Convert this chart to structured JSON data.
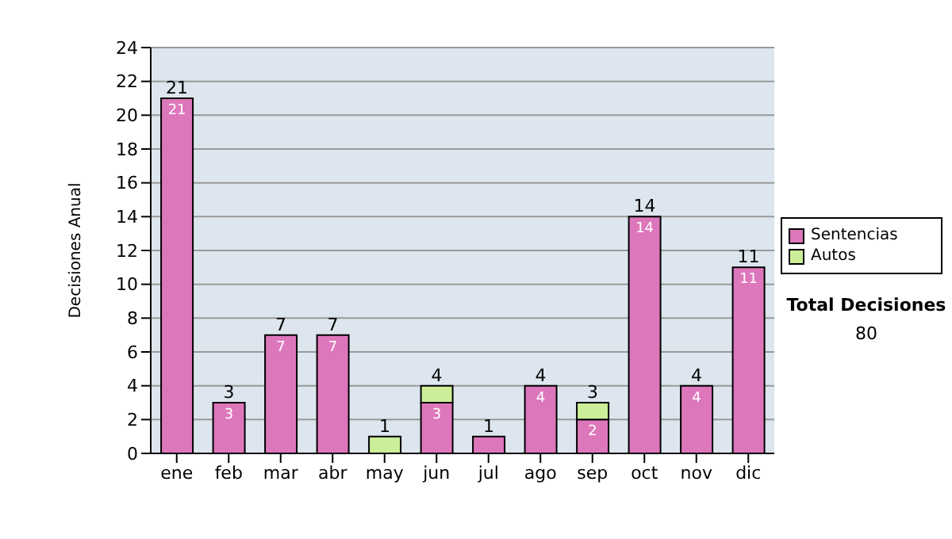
{
  "chart_data": {
    "type": "bar",
    "stacked": true,
    "ylabel": "Decisiones Anual",
    "categories": [
      "ene",
      "feb",
      "mar",
      "abr",
      "may",
      "jun",
      "jul",
      "ago",
      "sep",
      "oct",
      "nov",
      "dic"
    ],
    "series": [
      {
        "name": "Sentencias",
        "color": "#dd77bb",
        "values": [
          21,
          3,
          7,
          7,
          0,
          3,
          1,
          4,
          2,
          14,
          4,
          11
        ],
        "value_labels": [
          "21",
          "3",
          "7",
          "7",
          null,
          "3",
          null,
          "4",
          "2",
          "14",
          "4",
          "11"
        ]
      },
      {
        "name": "Autos",
        "color": "#ccee99",
        "values": [
          0,
          0,
          0,
          0,
          1,
          1,
          0,
          0,
          1,
          0,
          0,
          0
        ]
      }
    ],
    "totals": [
      "21",
      "3",
      "7",
      "7",
      "1",
      "4",
      "1",
      "4",
      "3",
      "14",
      "4",
      "11"
    ],
    "ylim": [
      0,
      24
    ],
    "yticks": [
      0,
      2,
      4,
      6,
      8,
      10,
      12,
      14,
      16,
      18,
      20,
      22,
      24
    ],
    "grid": "y",
    "legend": "right",
    "annotations": [
      "Total Decisiones",
      "80"
    ]
  }
}
